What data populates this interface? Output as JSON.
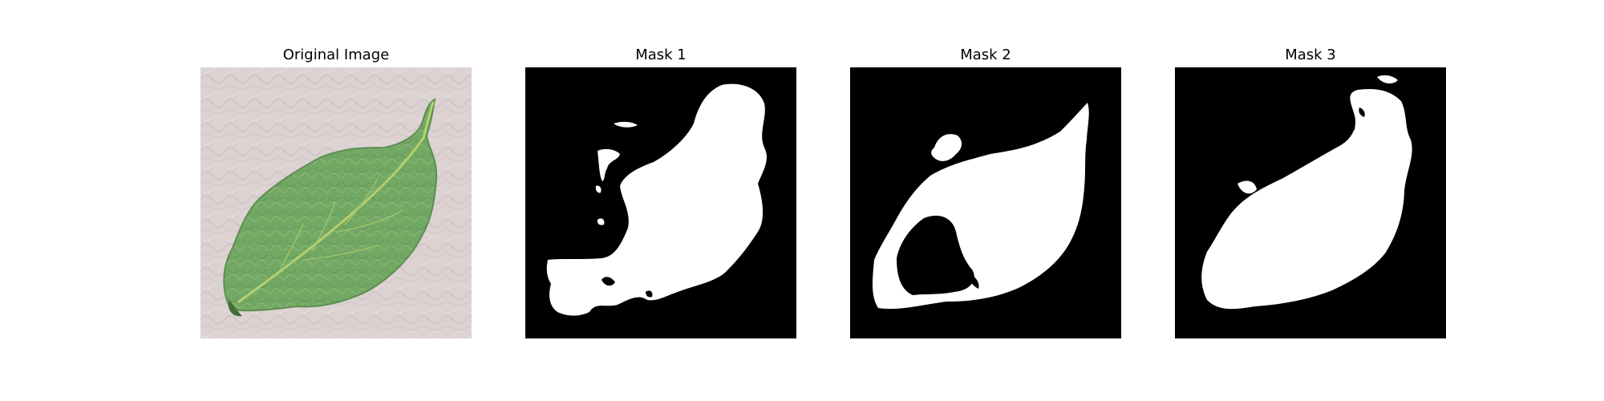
{
  "panels": [
    {
      "title": "Original Image",
      "kind": "photo",
      "subject": "leaf-photo"
    },
    {
      "title": "Mask 1",
      "kind": "mask"
    },
    {
      "title": "Mask 2",
      "kind": "mask"
    },
    {
      "title": "Mask 3",
      "kind": "mask"
    }
  ],
  "colors": {
    "background": "#ffffff",
    "photo_background": "#dcd2d2",
    "leaf": "#72a864",
    "leaf_vein": "#b5cf6e",
    "mask_background": "#000000",
    "mask_foreground": "#ffffff"
  }
}
